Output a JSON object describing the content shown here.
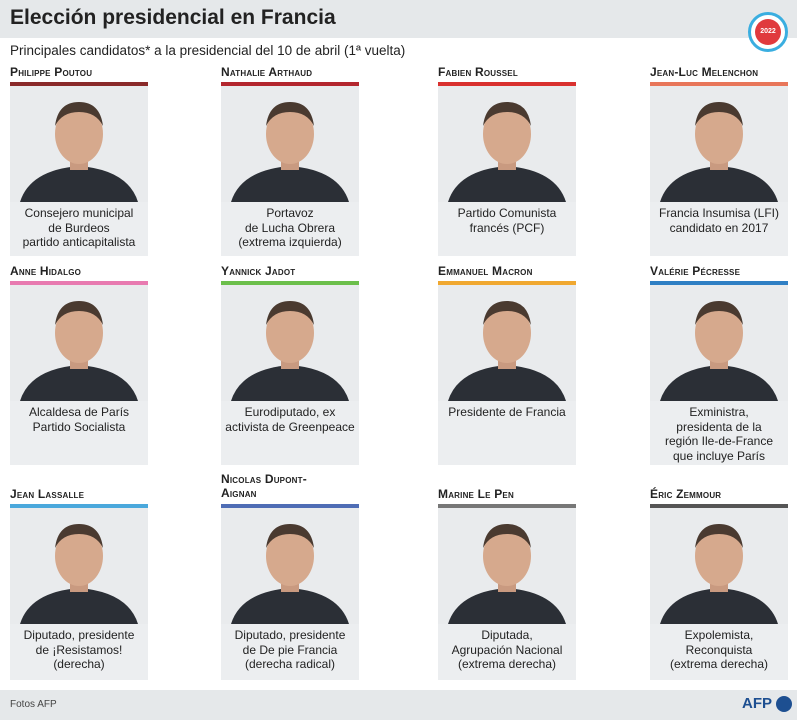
{
  "header": {
    "title": "Elección presidencial en Francia",
    "badge": "2022"
  },
  "subtitle": "Principales candidatos* a la presidencial del 10 de abril (1ª vuelta)",
  "candidates": [
    {
      "name": "Philippe Poutou",
      "color": "#8a2a2a",
      "desc": [
        "Consejero municipal",
        "de Burdeos",
        "partido anticapitalista"
      ]
    },
    {
      "name": "Nathalie Arthaud",
      "color": "#b3262e",
      "desc": [
        "Portavoz",
        "de Lucha Obrera",
        "(extrema izquierda)"
      ]
    },
    {
      "name": "Fabien Roussel",
      "color": "#d9312f",
      "desc": [
        "Partido Comunista",
        "francés (PCF)"
      ]
    },
    {
      "name": "Jean-Luc Melenchon",
      "color": "#e8765a",
      "desc": [
        "Francia Insumisa (LFI)",
        "candidato en 2017"
      ]
    },
    {
      "name": "Anne Hidalgo",
      "color": "#e87ab0",
      "desc": [
        "Alcaldesa de París",
        "Partido Socialista"
      ]
    },
    {
      "name": "Yannick Jadot",
      "color": "#6cbf4b",
      "desc": [
        "Eurodiputado, ex",
        "activista de Greenpeace"
      ]
    },
    {
      "name": "Emmanuel Macron",
      "color": "#f0a830",
      "desc": [
        "Presidente de Francia"
      ]
    },
    {
      "name": "Valérie Pécresse",
      "color": "#2f7fc4",
      "desc": [
        "Exministra,",
        "presidenta de la",
        "región Ile-de-France",
        "que incluye París"
      ]
    },
    {
      "name": "Jean Lassalle",
      "color": "#4aa8dc",
      "desc": [
        "Diputado, presidente",
        "de ¡Resistamos!",
        "(derecha)"
      ]
    },
    {
      "name": "Nicolas Dupont-Aignan",
      "color": "#4f6db5",
      "desc": [
        "Diputado, presidente",
        "de De pie Francia",
        "(derecha radical)"
      ]
    },
    {
      "name": "Marine Le Pen",
      "color": "#777777",
      "desc": [
        "Diputada,",
        "Agrupación Nacional",
        "(extrema derecha)"
      ]
    },
    {
      "name": "Éric Zemmour",
      "color": "#555555",
      "desc": [
        "Expolemista,",
        "Reconquista",
        "(extrema derecha)"
      ]
    }
  ],
  "footer": {
    "credit": "Fotos AFP",
    "logo": "AFP"
  }
}
